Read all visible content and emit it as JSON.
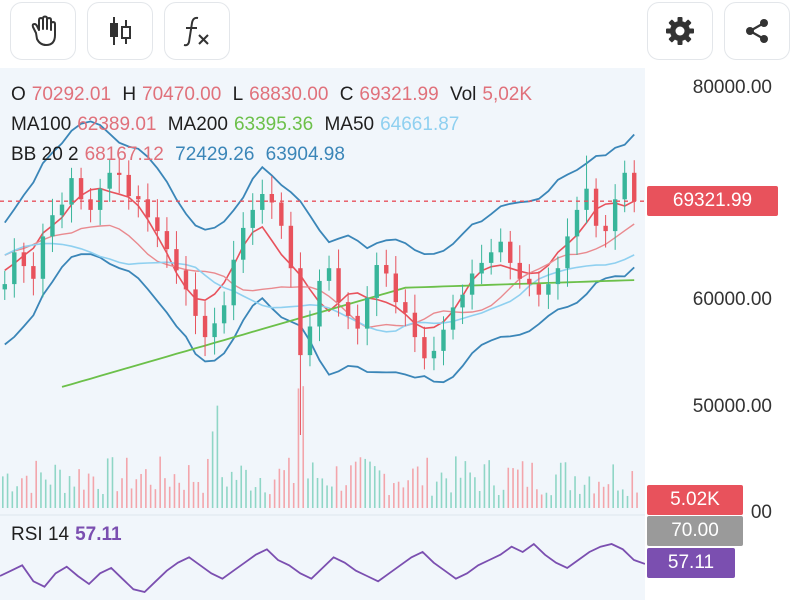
{
  "colors": {
    "red": "#e0717b",
    "green": "#6cc04a",
    "cyan": "#8fd0f0",
    "blue": "#3b86b8",
    "purple": "#7b4fb0",
    "gray": "#9a9a9a"
  },
  "toolbar": {
    "icons": [
      "hand-icon",
      "candlestick-icon",
      "function-icon",
      "gear-icon",
      "share-icon"
    ]
  },
  "ohlc": {
    "o_label": "O",
    "o_value": "70292.01",
    "h_label": "H",
    "h_value": "70470.00",
    "l_label": "L",
    "l_value": "68830.00",
    "c_label": "C",
    "c_value": "69321.99",
    "vol_label": "Vol",
    "vol_value": "5,02K"
  },
  "ma": {
    "ma100_label": "MA100",
    "ma100_value": "62389.01",
    "ma200_label": "MA200",
    "ma200_value": "63395.36",
    "ma50_label": "MA50",
    "ma50_value": "64661.87"
  },
  "bb": {
    "label": "BB 20 2",
    "mid": "68167.12",
    "upper": "72429.26",
    "lower": "63904.98"
  },
  "axis": {
    "tick_80000": "80000.00",
    "tick_60000": "60000.00",
    "tick_50000": "50000.00",
    "tick_40000_partial": "00"
  },
  "tags": {
    "price": "69321.99",
    "volume": "5.02K",
    "rsi_level": "70.00",
    "rsi_value": "57.11"
  },
  "rsi": {
    "label": "RSI 14",
    "value": "57.11"
  },
  "chart_data": {
    "type": "candlestick",
    "price_axis": {
      "min": 40000,
      "max": 82000,
      "ticks": [
        80000,
        60000,
        50000
      ]
    },
    "current_close": 69321.99,
    "candles_note": "approximate closes read from the chart, oldest to newest",
    "closes": [
      61500,
      64500,
      63200,
      62000,
      66000,
      68000,
      69000,
      71500,
      69500,
      68500,
      70500,
      72000,
      71800,
      69800,
      69500,
      67800,
      66500,
      64800,
      62800,
      61000,
      58500,
      56500,
      57800,
      59500,
      63800,
      66800,
      68500,
      70000,
      69200,
      67000,
      63000,
      54800,
      57500,
      61800,
      63000,
      59800,
      58500,
      57300,
      60200,
      63300,
      62500,
      59800,
      58800,
      56500,
      54500,
      55200,
      57200,
      59300,
      60500,
      62500,
      63500,
      64500,
      65500,
      63500,
      62000,
      61500,
      60500,
      61500,
      63000,
      66000,
      68500,
      70500,
      67000,
      66500,
      69500,
      72000,
      69321.99
    ],
    "rsi_values": [
      48,
      52,
      56,
      44,
      40,
      50,
      55,
      48,
      42,
      50,
      54,
      46,
      38,
      36,
      44,
      52,
      58,
      62,
      56,
      50,
      46,
      52,
      58,
      64,
      68,
      60,
      56,
      50,
      46,
      54,
      62,
      58,
      52,
      48,
      44,
      50,
      56,
      62,
      66,
      58,
      52,
      46,
      50,
      56,
      60,
      64,
      70,
      66,
      72,
      64,
      58,
      54,
      60,
      66,
      70,
      72,
      68,
      60,
      57.11
    ],
    "rsi_level": 70,
    "volume_last": "5.02K"
  }
}
